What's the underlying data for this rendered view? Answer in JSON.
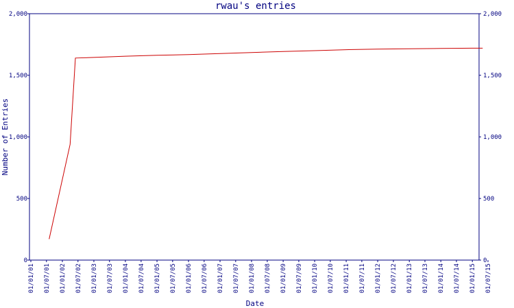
{
  "chart_data": {
    "type": "line",
    "title": "rwau's entries",
    "xlabel": "Date",
    "ylabel": "Number of Entries",
    "ylim": [
      0,
      2000
    ],
    "y_ticks": [
      0,
      500,
      1000,
      1500,
      2000
    ],
    "y_tick_labels": [
      "0",
      "500",
      "1,000",
      "1,500",
      "2,000"
    ],
    "x_ticks": [
      "01/01/01",
      "01/07/01",
      "01/01/02",
      "01/07/02",
      "01/01/03",
      "01/07/03",
      "01/01/04",
      "01/07/04",
      "01/01/05",
      "01/07/05",
      "01/01/06",
      "01/07/06",
      "01/01/07",
      "01/07/07",
      "01/01/08",
      "01/07/08",
      "01/01/09",
      "01/07/09",
      "01/01/10",
      "01/07/10",
      "01/01/11",
      "01/07/11",
      "01/01/12",
      "01/07/12",
      "01/01/13",
      "01/07/13",
      "01/01/14",
      "01/07/14",
      "01/01/15",
      "01/07/15"
    ],
    "grid": false,
    "colors": {
      "axis": "#000080",
      "line": "#cc0000",
      "text": "#000080"
    },
    "series": [
      {
        "values": [
          {
            "x": "2001-08-01",
            "y": 170
          },
          {
            "x": "2002-04-01",
            "y": 940
          },
          {
            "x": "2002-06-01",
            "y": 1640
          },
          {
            "x": "2003-01-01",
            "y": 1645
          },
          {
            "x": "2004-01-01",
            "y": 1655
          },
          {
            "x": "2005-01-01",
            "y": 1662
          },
          {
            "x": "2006-01-01",
            "y": 1668
          },
          {
            "x": "2007-01-01",
            "y": 1676
          },
          {
            "x": "2008-01-01",
            "y": 1685
          },
          {
            "x": "2009-01-01",
            "y": 1693
          },
          {
            "x": "2010-01-01",
            "y": 1700
          },
          {
            "x": "2011-01-01",
            "y": 1708
          },
          {
            "x": "2012-01-01",
            "y": 1712
          },
          {
            "x": "2013-01-01",
            "y": 1715
          },
          {
            "x": "2014-01-01",
            "y": 1718
          },
          {
            "x": "2015-01-01",
            "y": 1720
          },
          {
            "x": "2015-05-01",
            "y": 1720
          }
        ]
      }
    ]
  }
}
